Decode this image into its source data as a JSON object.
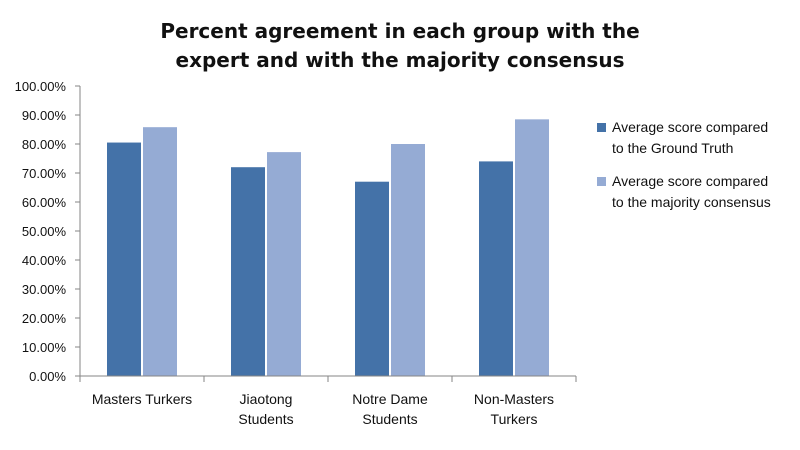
{
  "chart_data": {
    "type": "bar",
    "title_lines": [
      "Percent agreement in each group with the",
      "expert and with the majority consensus"
    ],
    "categories": [
      [
        "Masters Turkers"
      ],
      [
        "Jiaotong",
        "Students"
      ],
      [
        "Notre Dame",
        "Students"
      ],
      [
        "Non-Masters",
        "Turkers"
      ]
    ],
    "series": [
      {
        "name_lines": [
          "Average score compared",
          "to the Ground Truth"
        ],
        "color": "#4472A8",
        "values": [
          80.5,
          72.0,
          67.0,
          74.0
        ]
      },
      {
        "name_lines": [
          "Average score compared",
          "to the majority consensus"
        ],
        "color": "#95ABD4",
        "values": [
          85.8,
          77.2,
          80.0,
          88.5
        ]
      }
    ],
    "ylim": [
      0,
      100
    ],
    "y_ticks": [
      "0.00%",
      "10.00%",
      "20.00%",
      "30.00%",
      "40.00%",
      "50.00%",
      "60.00%",
      "70.00%",
      "80.00%",
      "90.00%",
      "100.00%"
    ],
    "grid": false,
    "legend_position": "right"
  },
  "colors": {
    "axis": "#868686"
  }
}
